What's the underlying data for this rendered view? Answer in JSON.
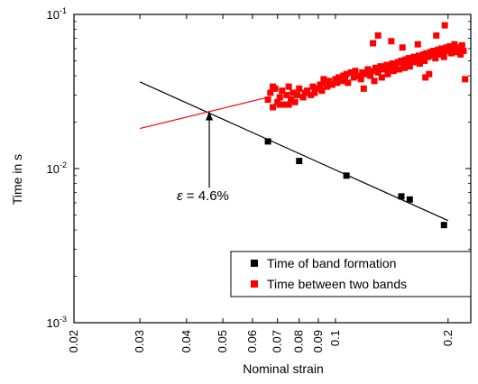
{
  "chart_data": {
    "type": "scatter",
    "xlabel": "Nominal strain",
    "ylabel": "Time in s",
    "x_scale": "log",
    "y_scale": "log",
    "xlim": [
      0.02,
      0.23
    ],
    "ylim": [
      0.001,
      0.1
    ],
    "x_ticks": [
      {
        "value": 0.02,
        "label": "0.02"
      },
      {
        "value": 0.03,
        "label": "0.03"
      },
      {
        "value": 0.04,
        "label": "0.04"
      },
      {
        "value": 0.05,
        "label": "0.05"
      },
      {
        "value": 0.06,
        "label": "0.06"
      },
      {
        "value": 0.07,
        "label": "0.07"
      },
      {
        "value": 0.08,
        "label": "0.08"
      },
      {
        "value": 0.09,
        "label": "0.09"
      },
      {
        "value": 0.1,
        "label": "0.1"
      },
      {
        "value": 0.2,
        "label": "0.2"
      }
    ],
    "y_ticks": [
      {
        "value": 0.001,
        "base": "10",
        "exp": "-3"
      },
      {
        "value": 0.01,
        "base": "10",
        "exp": "-2"
      },
      {
        "value": 0.1,
        "base": "10",
        "exp": "-1"
      }
    ],
    "grid": false,
    "legend_position": "bottom-right",
    "series": [
      {
        "name": "Time of band formation",
        "color": "#000000",
        "marker": "square",
        "points": [
          [
            0.066,
            0.015
          ],
          [
            0.08,
            0.0112
          ],
          [
            0.107,
            0.009
          ],
          [
            0.15,
            0.0066
          ],
          [
            0.158,
            0.0063
          ],
          [
            0.195,
            0.0043
          ]
        ]
      },
      {
        "name": "Time between two bands",
        "color": "#ff0000",
        "marker": "square",
        "points": [
          [
            0.066,
            0.028
          ],
          [
            0.067,
            0.031
          ],
          [
            0.068,
            0.025
          ],
          [
            0.069,
            0.033
          ],
          [
            0.07,
            0.027
          ],
          [
            0.071,
            0.029
          ],
          [
            0.072,
            0.032
          ],
          [
            0.073,
            0.026
          ],
          [
            0.074,
            0.03
          ],
          [
            0.075,
            0.034
          ],
          [
            0.076,
            0.028
          ],
          [
            0.077,
            0.031
          ],
          [
            0.078,
            0.027
          ],
          [
            0.079,
            0.03
          ],
          [
            0.08,
            0.033
          ],
          [
            0.082,
            0.029
          ],
          [
            0.083,
            0.031
          ],
          [
            0.084,
            0.032
          ],
          [
            0.086,
            0.03
          ],
          [
            0.087,
            0.034
          ],
          [
            0.088,
            0.031
          ],
          [
            0.09,
            0.033
          ],
          [
            0.091,
            0.035
          ],
          [
            0.092,
            0.032
          ],
          [
            0.094,
            0.036
          ],
          [
            0.095,
            0.034
          ],
          [
            0.096,
            0.037
          ],
          [
            0.098,
            0.035
          ],
          [
            0.1,
            0.038
          ],
          [
            0.101,
            0.036
          ],
          [
            0.102,
            0.039
          ],
          [
            0.104,
            0.037
          ],
          [
            0.105,
            0.04
          ],
          [
            0.106,
            0.038
          ],
          [
            0.107,
            0.041
          ],
          [
            0.108,
            0.036
          ],
          [
            0.11,
            0.042
          ],
          [
            0.112,
            0.039
          ],
          [
            0.113,
            0.043
          ],
          [
            0.115,
            0.04
          ],
          [
            0.117,
            0.038
          ],
          [
            0.118,
            0.042
          ],
          [
            0.12,
            0.041
          ],
          [
            0.122,
            0.044
          ],
          [
            0.124,
            0.04
          ],
          [
            0.125,
            0.043
          ],
          [
            0.126,
            0.065
          ],
          [
            0.127,
            0.037
          ],
          [
            0.128,
            0.045
          ],
          [
            0.13,
            0.042
          ],
          [
            0.132,
            0.046
          ],
          [
            0.133,
            0.039
          ],
          [
            0.135,
            0.044
          ],
          [
            0.137,
            0.047
          ],
          [
            0.138,
            0.041
          ],
          [
            0.14,
            0.045
          ],
          [
            0.142,
            0.048
          ],
          [
            0.143,
            0.043
          ],
          [
            0.145,
            0.046
          ],
          [
            0.147,
            0.049
          ],
          [
            0.148,
            0.044
          ],
          [
            0.15,
            0.05
          ],
          [
            0.152,
            0.047
          ],
          [
            0.153,
            0.045
          ],
          [
            0.154,
            0.051
          ],
          [
            0.155,
            0.048
          ],
          [
            0.157,
            0.052
          ],
          [
            0.158,
            0.046
          ],
          [
            0.16,
            0.05
          ],
          [
            0.162,
            0.053
          ],
          [
            0.163,
            0.049
          ],
          [
            0.165,
            0.051
          ],
          [
            0.167,
            0.054
          ],
          [
            0.168,
            0.048
          ],
          [
            0.17,
            0.052
          ],
          [
            0.172,
            0.055
          ],
          [
            0.173,
            0.05
          ],
          [
            0.175,
            0.056
          ],
          [
            0.177,
            0.053
          ],
          [
            0.178,
            0.041
          ],
          [
            0.18,
            0.057
          ],
          [
            0.182,
            0.054
          ],
          [
            0.183,
            0.058
          ],
          [
            0.185,
            0.052
          ],
          [
            0.187,
            0.056
          ],
          [
            0.188,
            0.059
          ],
          [
            0.19,
            0.055
          ],
          [
            0.192,
            0.06
          ],
          [
            0.193,
            0.057
          ],
          [
            0.195,
            0.053
          ],
          [
            0.196,
            0.085
          ],
          [
            0.198,
            0.061
          ],
          [
            0.2,
            0.058
          ],
          [
            0.202,
            0.062
          ],
          [
            0.204,
            0.056
          ],
          [
            0.206,
            0.06
          ],
          [
            0.208,
            0.064
          ],
          [
            0.21,
            0.057
          ],
          [
            0.212,
            0.061
          ],
          [
            0.214,
            0.059
          ],
          [
            0.216,
            0.055
          ],
          [
            0.218,
            0.063
          ],
          [
            0.22,
            0.058
          ],
          [
            0.222,
            0.038
          ],
          [
            0.141,
            0.067
          ],
          [
            0.119,
            0.033
          ],
          [
            0.13,
            0.073
          ],
          [
            0.151,
            0.061
          ],
          [
            0.166,
            0.064
          ],
          [
            0.174,
            0.039
          ],
          [
            0.186,
            0.073
          ],
          [
            0.068,
            0.034
          ],
          [
            0.071,
            0.026
          ],
          [
            0.075,
            0.026
          ],
          [
            0.093,
            0.038
          ]
        ]
      }
    ],
    "fit_lines": [
      {
        "color": "#000000",
        "from": [
          0.03,
          0.0365
        ],
        "to": [
          0.2,
          0.0046
        ]
      },
      {
        "color": "#ff0000",
        "from": [
          0.03,
          0.0182
        ],
        "to": [
          0.066,
          0.029
        ]
      }
    ],
    "annotation": {
      "symbol": "ε",
      "text": " = 4.6%",
      "arrow_to": [
        0.046,
        0.0235
      ],
      "arrow_from": [
        0.046,
        0.0075
      ]
    }
  }
}
